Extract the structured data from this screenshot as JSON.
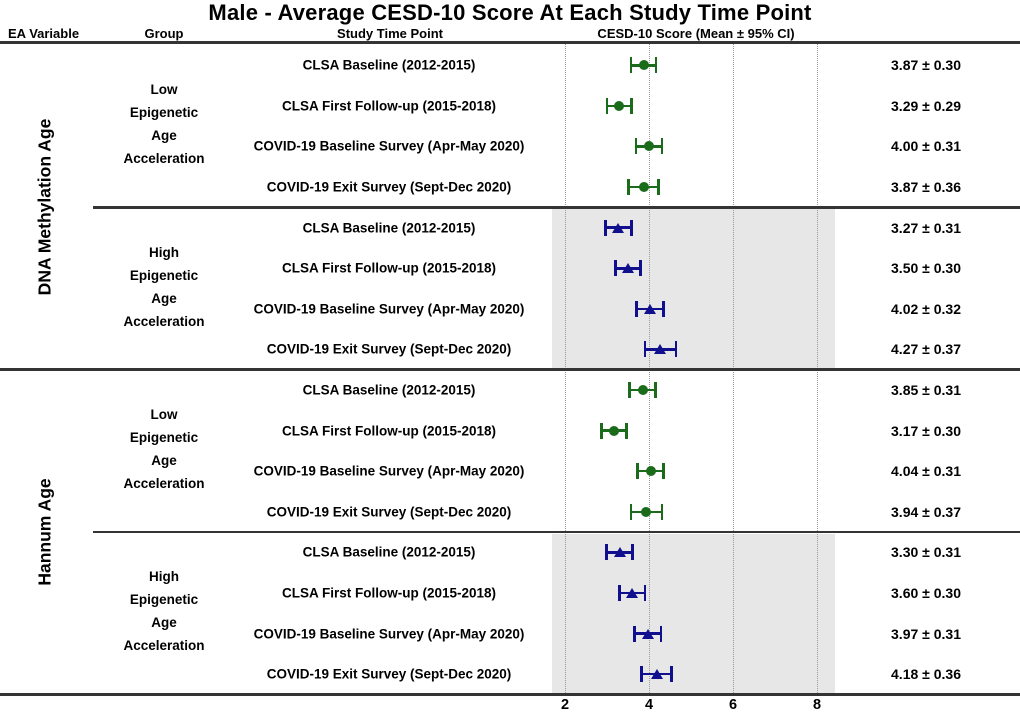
{
  "title": "Male - Average CESD-10 Score At Each Study Time Point",
  "columns": {
    "ea_variable": "EA Variable",
    "group": "Group",
    "time_point": "Study Time Point",
    "score": "CESD-10 Score (Mean ± 95% CI)"
  },
  "colors": {
    "low_group_marker": "#1a6b1a",
    "high_group_marker": "#10108e",
    "high_group_shading": "#e7e7e7",
    "gridline": "#999999",
    "divider": "#343434"
  },
  "chart_data": {
    "type": "forest",
    "xlabel": "",
    "axis": {
      "min": 2,
      "max": 8,
      "ticks": [
        2,
        4,
        6,
        8
      ]
    },
    "grid": "vertical-dotted",
    "sections": [
      {
        "ea_variable": "DNA Methylation Age",
        "groups": [
          {
            "name": "Low Epigenetic Age Acceleration",
            "name_lines": [
              "Low",
              "Epigenetic",
              "Age",
              "Acceleration"
            ],
            "marker": "circle",
            "color": "#1a6b1a",
            "shaded": false,
            "rows": [
              {
                "label": "CLSA Baseline (2012-2015)",
                "mean": 3.87,
                "ci": 0.3,
                "display": "3.87 ± 0.30"
              },
              {
                "label": "CLSA First Follow-up (2015-2018)",
                "mean": 3.29,
                "ci": 0.29,
                "display": "3.29 ± 0.29"
              },
              {
                "label": "COVID-19 Baseline Survey (Apr-May 2020)",
                "mean": 4.0,
                "ci": 0.31,
                "display": "4.00 ± 0.31"
              },
              {
                "label": "COVID-19 Exit Survey (Sept-Dec 2020)",
                "mean": 3.87,
                "ci": 0.36,
                "display": "3.87 ± 0.36"
              }
            ]
          },
          {
            "name": "High Epigenetic Age Acceleration",
            "name_lines": [
              "High",
              "Epigenetic",
              "Age",
              "Acceleration"
            ],
            "marker": "triangle",
            "color": "#10108e",
            "shaded": true,
            "rows": [
              {
                "label": "CLSA Baseline (2012-2015)",
                "mean": 3.27,
                "ci": 0.31,
                "display": "3.27 ± 0.31"
              },
              {
                "label": "CLSA First Follow-up (2015-2018)",
                "mean": 3.5,
                "ci": 0.3,
                "display": "3.50 ± 0.30"
              },
              {
                "label": "COVID-19 Baseline Survey (Apr-May 2020)",
                "mean": 4.02,
                "ci": 0.32,
                "display": "4.02 ± 0.32"
              },
              {
                "label": "COVID-19 Exit Survey (Sept-Dec 2020)",
                "mean": 4.27,
                "ci": 0.37,
                "display": "4.27 ± 0.37"
              }
            ]
          }
        ]
      },
      {
        "ea_variable": "Hannum Age",
        "groups": [
          {
            "name": "Low Epigenetic Age Acceleration",
            "name_lines": [
              "Low",
              "Epigenetic",
              "Age",
              "Acceleration"
            ],
            "marker": "circle",
            "color": "#1a6b1a",
            "shaded": false,
            "rows": [
              {
                "label": "CLSA Baseline (2012-2015)",
                "mean": 3.85,
                "ci": 0.31,
                "display": "3.85 ± 0.31"
              },
              {
                "label": "CLSA First Follow-up (2015-2018)",
                "mean": 3.17,
                "ci": 0.3,
                "display": "3.17 ± 0.30"
              },
              {
                "label": "COVID-19 Baseline Survey (Apr-May 2020)",
                "mean": 4.04,
                "ci": 0.31,
                "display": "4.04 ± 0.31"
              },
              {
                "label": "COVID-19 Exit Survey (Sept-Dec 2020)",
                "mean": 3.94,
                "ci": 0.37,
                "display": "3.94 ± 0.37"
              }
            ]
          },
          {
            "name": "High Epigenetic Age Acceleration",
            "name_lines": [
              "High",
              "Epigenetic",
              "Age",
              "Acceleration"
            ],
            "marker": "triangle",
            "color": "#10108e",
            "shaded": true,
            "rows": [
              {
                "label": "CLSA Baseline (2012-2015)",
                "mean": 3.3,
                "ci": 0.31,
                "display": "3.30 ± 0.31"
              },
              {
                "label": "CLSA First Follow-up (2015-2018)",
                "mean": 3.6,
                "ci": 0.3,
                "display": "3.60 ± 0.30"
              },
              {
                "label": "COVID-19 Baseline Survey (Apr-May 2020)",
                "mean": 3.97,
                "ci": 0.31,
                "display": "3.97 ± 0.31"
              },
              {
                "label": "COVID-19 Exit Survey (Sept-Dec 2020)",
                "mean": 4.18,
                "ci": 0.36,
                "display": "4.18 ± 0.36"
              }
            ]
          }
        ]
      }
    ]
  }
}
